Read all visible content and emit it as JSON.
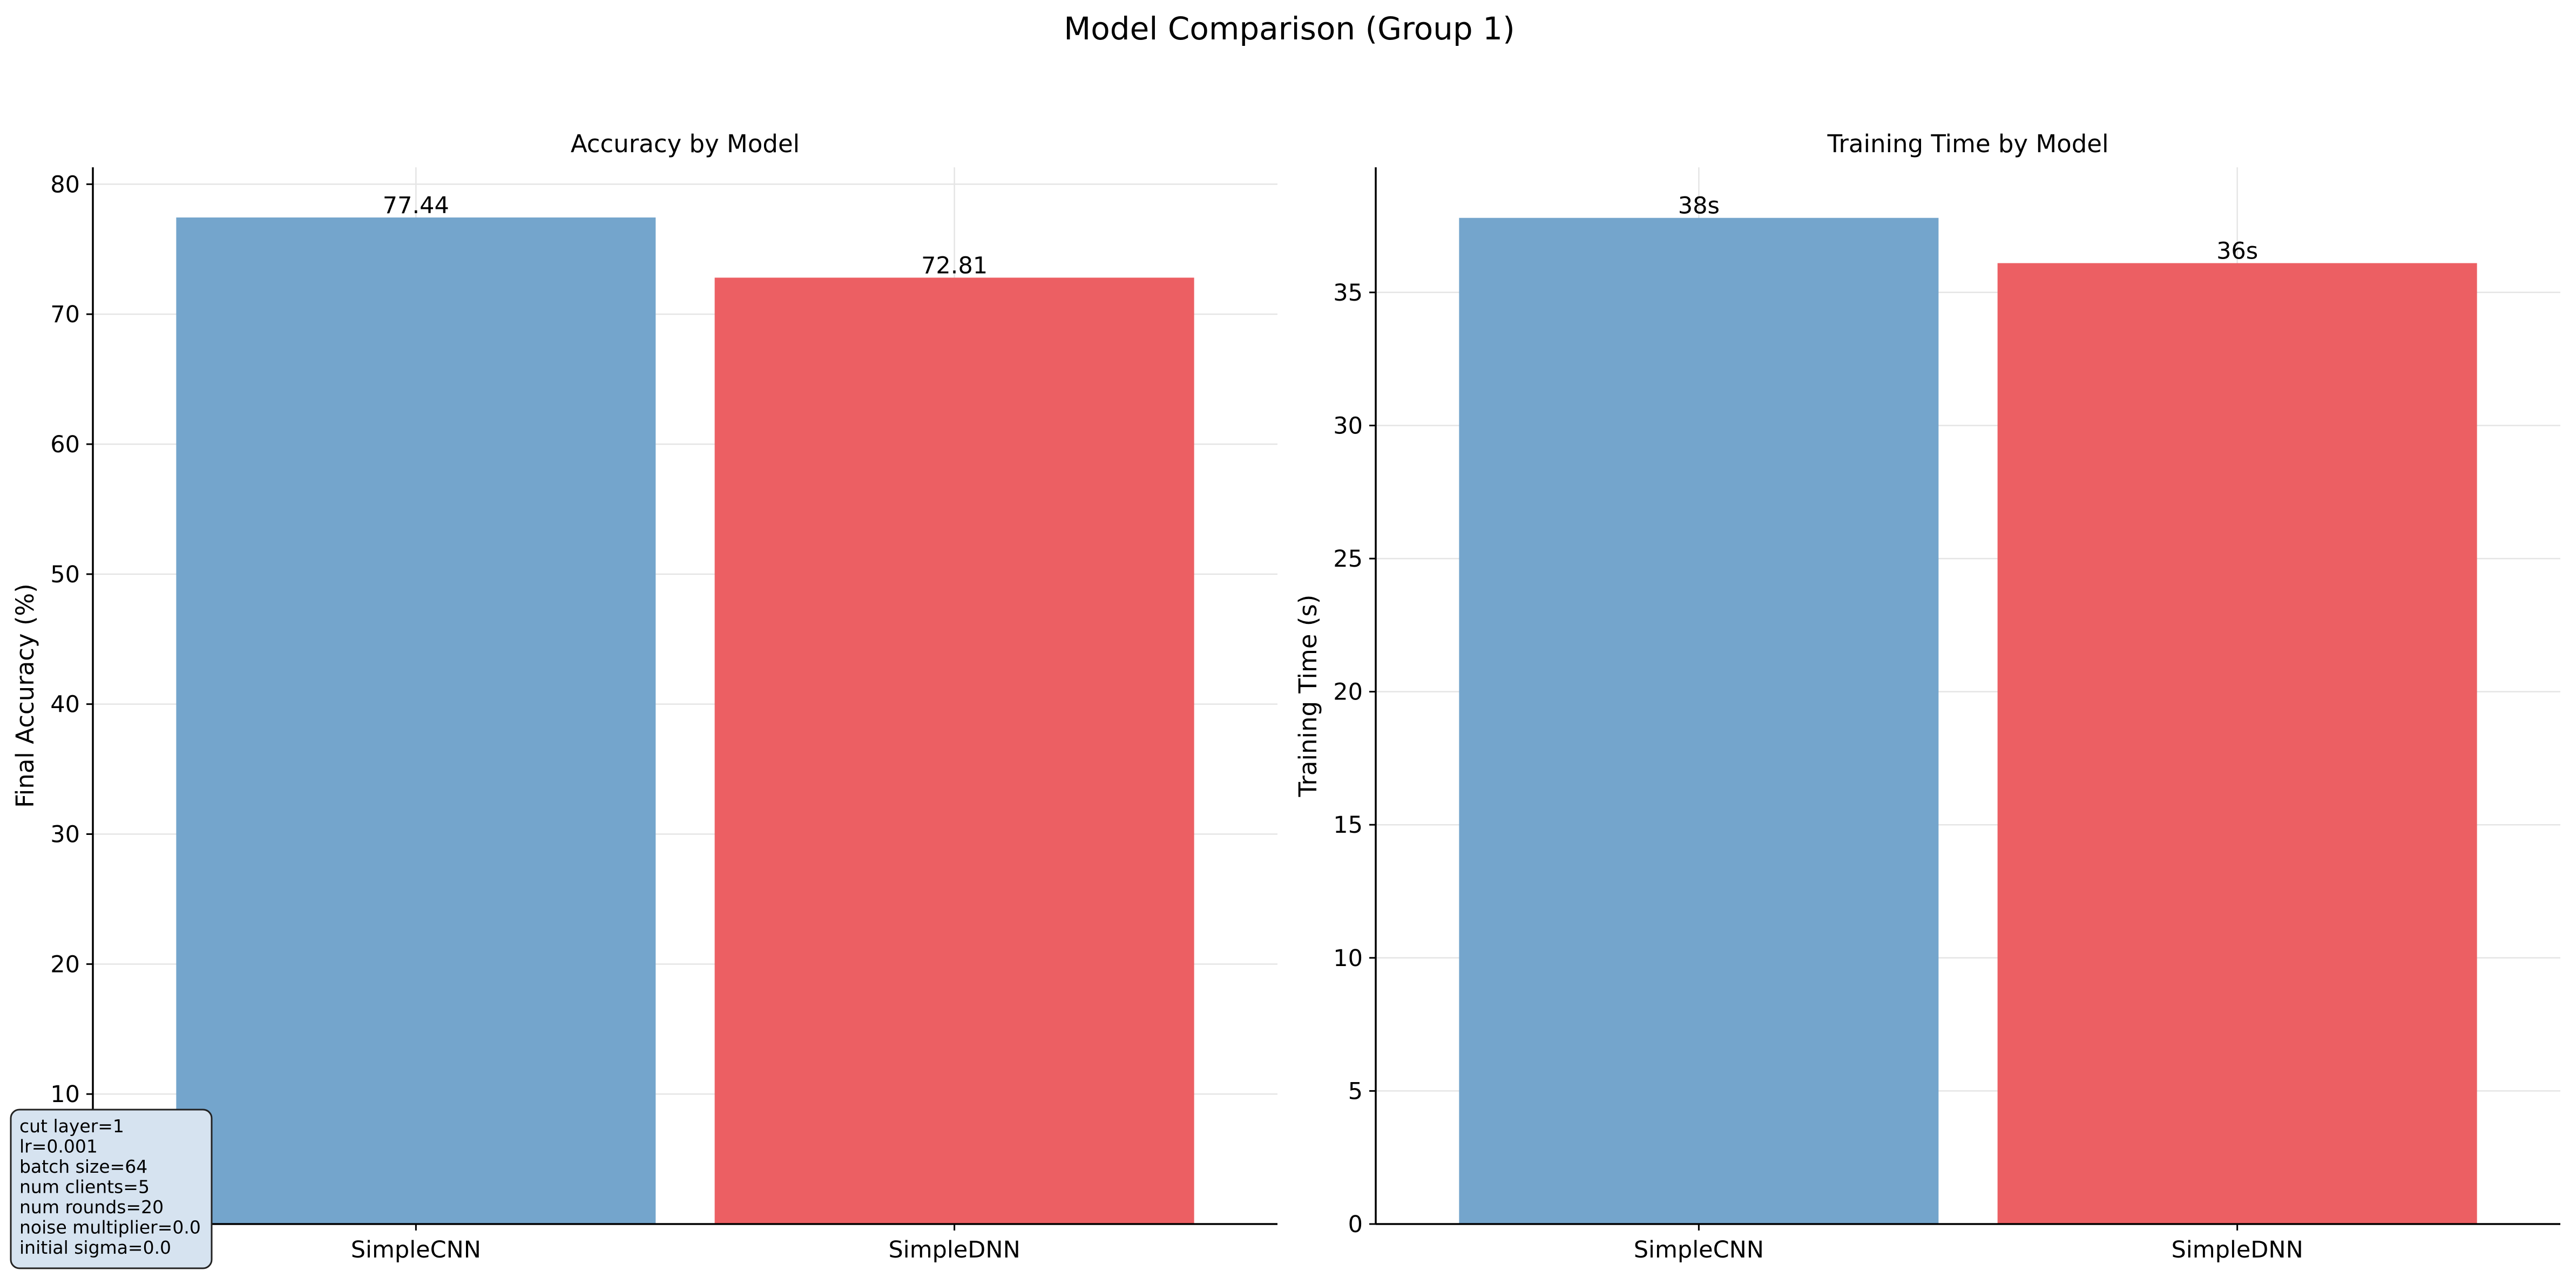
{
  "suptitle": "Model Comparison (Group 1)",
  "chart_data": [
    {
      "type": "bar",
      "title": "Accuracy by Model",
      "xlabel": "",
      "ylabel": "Final Accuracy (%)",
      "categories": [
        "SimpleCNN",
        "SimpleDNN"
      ],
      "values": [
        77.44,
        72.81
      ],
      "value_labels": [
        "77.44",
        "72.81"
      ],
      "ylim": [
        0,
        81.3
      ],
      "yticks": [
        0,
        10,
        20,
        30,
        40,
        50,
        60,
        70,
        80
      ],
      "ytick_labels": [
        "0",
        "10",
        "20",
        "30",
        "40",
        "50",
        "60",
        "70",
        "80"
      ],
      "colors": [
        "#74a5cc",
        "#ec5f63"
      ],
      "grid": true
    },
    {
      "type": "bar",
      "title": "Training Time by Model",
      "xlabel": "",
      "ylabel": "Training Time (s)",
      "categories": [
        "SimpleCNN",
        "SimpleDNN"
      ],
      "values": [
        37.8,
        36.1
      ],
      "value_labels": [
        "38s",
        "36s"
      ],
      "ylim": [
        0,
        39.7
      ],
      "yticks": [
        0,
        5,
        10,
        15,
        20,
        25,
        30,
        35
      ],
      "ytick_labels": [
        "0",
        "5",
        "10",
        "15",
        "20",
        "25",
        "30",
        "35"
      ],
      "colors": [
        "#74a5cc",
        "#ec5f63"
      ],
      "grid": true
    }
  ],
  "param_box": {
    "lines": [
      "cut layer=1",
      "lr=0.001",
      "batch size=64",
      "num clients=5",
      "num rounds=20",
      "noise multiplier=0.0",
      "initial sigma=0.0"
    ]
  }
}
